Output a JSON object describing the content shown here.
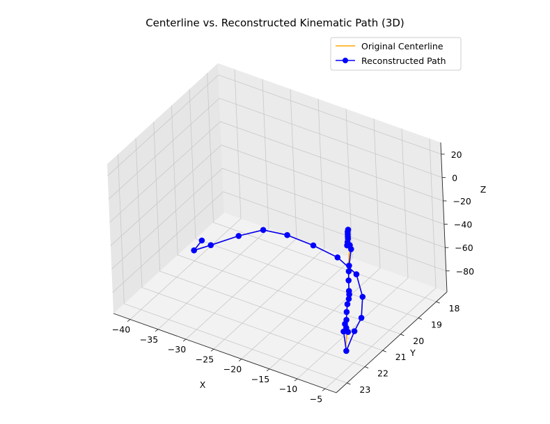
{
  "chart_data": {
    "type": "line",
    "projection": "3d",
    "title": "Centerline vs. Reconstructed Kinematic Path (3D)",
    "xlabel": "X",
    "ylabel": "Y",
    "zlabel": "Z",
    "xlim": [
      -43,
      -3
    ],
    "ylim": [
      17.4,
      23.6
    ],
    "zlim": [
      -98,
      30
    ],
    "xticks": [
      -40,
      -35,
      -30,
      -25,
      -20,
      -15,
      -10,
      -5
    ],
    "yticks": [
      18,
      19,
      20,
      21,
      22,
      23
    ],
    "zticks": [
      20,
      0,
      -20,
      -40,
      -60,
      -80
    ],
    "grid": true,
    "legend_position": "top-right",
    "series": [
      {
        "name": "Original Centerline",
        "color": "#ffa500",
        "marker": "none",
        "points": [
          [
            -38.5,
            20.0,
            -78
          ],
          [
            -40.0,
            20.0,
            -89
          ],
          [
            -39.6,
            19.2,
            -95
          ],
          [
            -37.5,
            18.3,
            -96
          ],
          [
            -35.0,
            17.7,
            -95
          ],
          [
            -31.0,
            17.6,
            -94
          ],
          [
            -26.0,
            17.7,
            -93
          ],
          [
            -21.0,
            17.9,
            -92
          ],
          [
            -16.0,
            18.4,
            -91
          ],
          [
            -12.0,
            19.3,
            -91
          ],
          [
            -9.0,
            20.3,
            -90
          ],
          [
            -8.0,
            21.0,
            -90
          ],
          [
            -6.6,
            21.9,
            -92
          ],
          [
            -6.3,
            22.0,
            -85
          ],
          [
            -6.1,
            22.0,
            -78
          ],
          [
            -6.0,
            22.0,
            -70
          ],
          [
            -6.0,
            22.0,
            -63
          ],
          [
            -5.9,
            22.0,
            -56
          ],
          [
            -5.7,
            22.0,
            -49
          ],
          [
            -5.4,
            22.0,
            -44
          ],
          [
            -5.3,
            22.0,
            -37
          ],
          [
            -5.3,
            22.0,
            -25
          ],
          [
            -5.2,
            22.0,
            -15
          ],
          [
            -5.0,
            22.0,
            -5
          ],
          [
            -4.6,
            22.0,
            4
          ],
          [
            -5.3,
            22.0,
            2
          ],
          [
            -5.2,
            22.0,
            5
          ],
          [
            -5.1,
            22.0,
            8
          ],
          [
            -5.1,
            22.0,
            10
          ],
          [
            -5.1,
            22.0,
            12
          ],
          [
            -5.0,
            22.0,
            13
          ]
        ]
      },
      {
        "name": "Reconstructed Path",
        "color": "#0000ff",
        "marker": "o",
        "points": [
          [
            -38.5,
            20.0,
            -78
          ],
          [
            -40.0,
            20.0,
            -89
          ],
          [
            -39.6,
            19.2,
            -95
          ],
          [
            -37.5,
            18.3,
            -96
          ],
          [
            -35.0,
            17.7,
            -95
          ],
          [
            -31.0,
            17.6,
            -94
          ],
          [
            -26.0,
            17.7,
            -93
          ],
          [
            -21.0,
            17.9,
            -92
          ],
          [
            -16.0,
            18.4,
            -91
          ],
          [
            -12.0,
            19.3,
            -91
          ],
          [
            -9.0,
            20.3,
            -90
          ],
          [
            -8.0,
            21.0,
            -90
          ],
          [
            -6.6,
            21.9,
            -92
          ],
          [
            -6.6,
            22.0,
            -74
          ],
          [
            -6.1,
            22.0,
            -70
          ],
          [
            -5.8,
            22.0,
            -73
          ],
          [
            -6.3,
            22.0,
            -67
          ],
          [
            -6.0,
            22.0,
            -63
          ],
          [
            -5.9,
            22.0,
            -56
          ],
          [
            -5.7,
            22.0,
            -49
          ],
          [
            -5.4,
            22.0,
            -44
          ],
          [
            -5.3,
            22.0,
            -40
          ],
          [
            -5.3,
            22.0,
            -37
          ],
          [
            -5.3,
            22.0,
            -28
          ],
          [
            -5.2,
            22.0,
            -20
          ],
          [
            -5.1,
            22.0,
            -15
          ],
          [
            -4.6,
            22.0,
            0
          ],
          [
            -4.8,
            22.0,
            3
          ],
          [
            -5.3,
            22.0,
            2
          ],
          [
            -5.2,
            22.0,
            5
          ],
          [
            -5.1,
            22.0,
            8
          ],
          [
            -5.1,
            22.0,
            10
          ],
          [
            -5.1,
            22.0,
            12
          ],
          [
            -5.1,
            22.0,
            14
          ],
          [
            -5.0,
            22.0,
            16
          ]
        ]
      }
    ]
  }
}
